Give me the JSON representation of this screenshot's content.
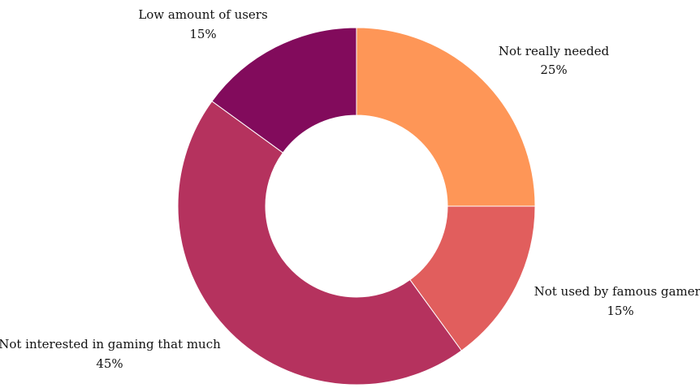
{
  "chart_data": {
    "type": "pie",
    "donut": true,
    "start_angle": "top",
    "direction": "clockwise",
    "slices": [
      {
        "label": "Not really needed",
        "value": 25,
        "value_label": "25%",
        "color": "#FE9657"
      },
      {
        "label": "Not used by famous gamers",
        "value": 15,
        "value_label": "15%",
        "color": "#E15E5D"
      },
      {
        "label": "Not interested in gaming that much",
        "value": 45,
        "value_label": "45%",
        "color": "#B5325E"
      },
      {
        "label": "Low amount of users",
        "value": 15,
        "value_label": "15%",
        "color": "#820B5C"
      }
    ]
  }
}
